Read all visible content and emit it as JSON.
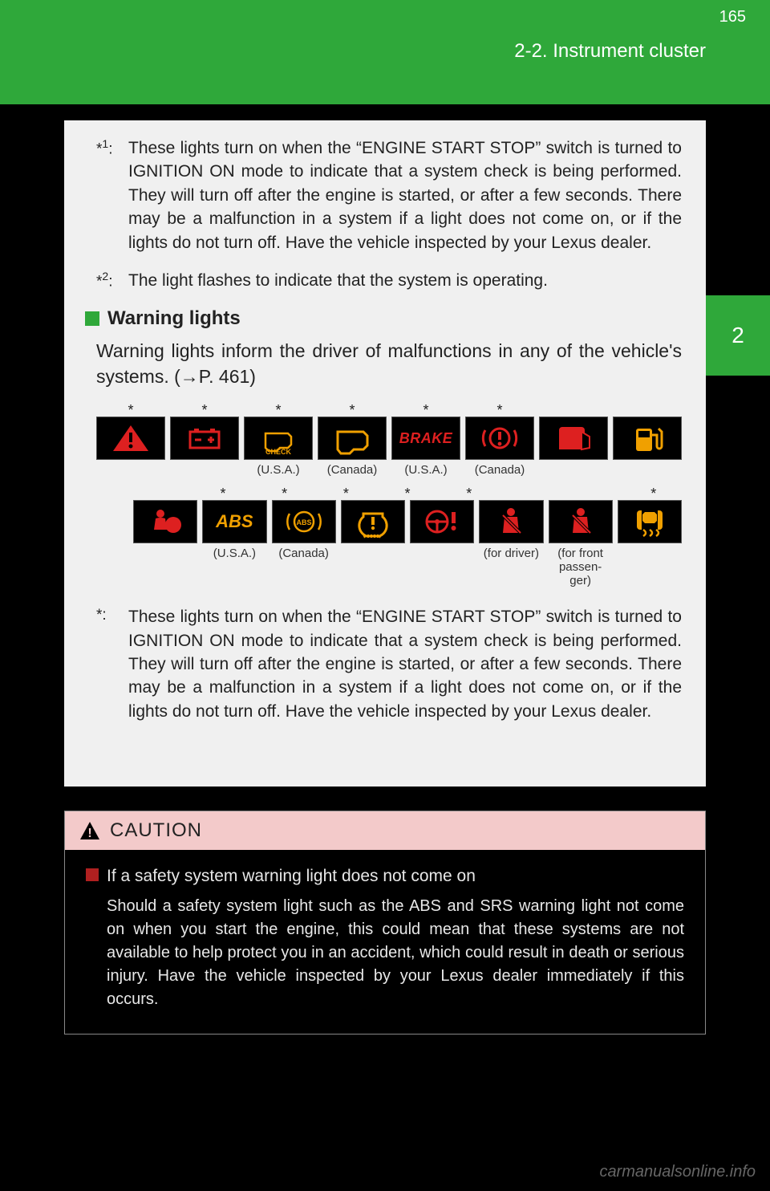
{
  "header": {
    "section": "2-2. Instrument cluster",
    "page_num": "165",
    "tab": "2"
  },
  "footnotes_top": [
    {
      "mark": "*1",
      "sup": "1",
      "text": "These lights turn on when the “ENGINE START STOP” switch is turned to IGNITION ON mode to indicate that a system check is being performed. They will turn off after the engine is started, or after a few seconds. There may be a malfunction in a system if a light does not come on, or if the lights do not turn off. Have the vehicle inspected by your Lexus dealer."
    },
    {
      "mark": "*2",
      "sup": "2",
      "text": "The light flashes to indicate that the system is operating."
    }
  ],
  "section": {
    "title": "Warning lights",
    "intro": "Warning lights inform the driver of malfunctions in any of the vehicle's systems. (→P. 461)"
  },
  "colors": {
    "red": "#dd2020",
    "amber": "#f0a000",
    "bg_icon": "#000000",
    "green": "#2fa83a",
    "caution_bg": "#f3caca"
  },
  "icon_rows": [
    {
      "stars": [
        "*",
        "*",
        "*",
        "*",
        "*",
        "*",
        "",
        ""
      ],
      "icons": [
        {
          "name": "master-warning",
          "color": "red"
        },
        {
          "name": "battery",
          "color": "red"
        },
        {
          "name": "check-engine-usa",
          "color": "amber"
        },
        {
          "name": "check-engine-ca",
          "color": "amber"
        },
        {
          "name": "brake-text",
          "color": "red"
        },
        {
          "name": "brake-ca",
          "color": "red"
        },
        {
          "name": "door-ajar",
          "color": "red"
        },
        {
          "name": "fuel",
          "color": "amber"
        }
      ],
      "labels": [
        "",
        "",
        "(U.S.A.)",
        "(Canada)",
        "(U.S.A.)",
        "(Canada)",
        "",
        ""
      ]
    },
    {
      "stars": [
        "",
        "*",
        "*",
        "*",
        "*",
        "*",
        "",
        "",
        "*"
      ],
      "offset": 46,
      "icons": [
        {
          "name": "airbag",
          "color": "red"
        },
        {
          "name": "abs-text",
          "color": "amber"
        },
        {
          "name": "abs-ca",
          "color": "amber"
        },
        {
          "name": "tire-pressure",
          "color": "amber"
        },
        {
          "name": "power-steering",
          "color": "red"
        },
        {
          "name": "seatbelt-driver",
          "color": "red"
        },
        {
          "name": "seatbelt-passenger",
          "color": "red"
        },
        {
          "name": "slip",
          "color": "amber"
        }
      ],
      "labels": [
        "",
        "(U.S.A.)",
        "(Canada)",
        "",
        "",
        "(for driver)",
        "(for front passen- ger)",
        ""
      ]
    }
  ],
  "footnotes_bottom": [
    {
      "mark": "*",
      "text": "These lights turn on when the “ENGINE START STOP” switch is turned to IGNITION ON mode to indicate that a system check is being performed. They will turn off after the engine is started, or after a few seconds. There may be a malfunction in a system if a light does not come on, or if the lights do not turn off. Have the vehicle inspected by your Lexus dealer."
    }
  ],
  "caution": {
    "title": "CAUTION",
    "subtitle": "If a safety system warning light does not come on",
    "text": "Should a safety system light such as the ABS and SRS warning light not come on when you start the engine, this could mean that these systems are not available to help protect you in an accident, which could result in death or serious injury. Have the vehicle inspected by your Lexus dealer immediately if this occurs."
  },
  "watermark": "carmanualsonline.info"
}
